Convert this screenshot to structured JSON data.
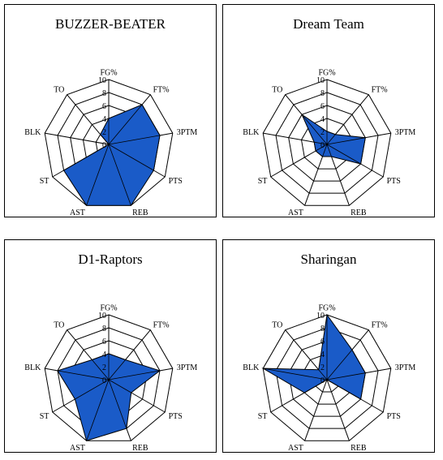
{
  "chart_data": [
    {
      "type": "radar",
      "title": "BUZZER-BEATER",
      "categories": [
        "FG%",
        "FT%",
        "3PTM",
        "PTS",
        "REB",
        "AST",
        "ST",
        "BLK",
        "TO"
      ],
      "values": [
        4,
        8,
        8,
        8,
        10,
        10,
        8,
        0,
        2
      ],
      "rlim": [
        0,
        10
      ],
      "rticks": [
        "10",
        "8",
        "6",
        "4",
        "2",
        "0"
      ],
      "fill_color": "#1A5BC8"
    },
    {
      "type": "radar",
      "title": "Dream Team",
      "categories": [
        "FG%",
        "FT%",
        "3PTM",
        "PTS",
        "REB",
        "AST",
        "ST",
        "BLK",
        "TO"
      ],
      "values": [
        2,
        2,
        6,
        6,
        2,
        2,
        2,
        2,
        6
      ],
      "rlim": [
        0,
        10
      ],
      "rticks": [
        "10",
        "8",
        "6",
        "4",
        "2",
        "0"
      ],
      "fill_color": "#1A5BC8"
    },
    {
      "type": "radar",
      "title": "D1-Raptors",
      "categories": [
        "FG%",
        "FT%",
        "3PTM",
        "PTS",
        "REB",
        "AST",
        "ST",
        "BLK",
        "TO"
      ],
      "values": [
        4,
        4,
        8,
        4,
        8,
        10,
        6,
        8,
        4
      ],
      "rlim": [
        0,
        10
      ],
      "rticks": [
        "10",
        "8",
        "6",
        "4",
        "2",
        "0"
      ],
      "fill_color": "#1A5BC8"
    },
    {
      "type": "radar",
      "title": "Sharingan",
      "categories": [
        "FG%",
        "FT%",
        "3PTM",
        "PTS",
        "REB",
        "AST",
        "ST",
        "BLK",
        "TO"
      ],
      "values": [
        10,
        6,
        6,
        6,
        0,
        0,
        4,
        10,
        2
      ],
      "rlim": [
        0,
        10
      ],
      "rticks": [
        "10",
        "8",
        "6",
        "4",
        "2",
        "0"
      ],
      "fill_color": "#1A5BC8"
    }
  ]
}
